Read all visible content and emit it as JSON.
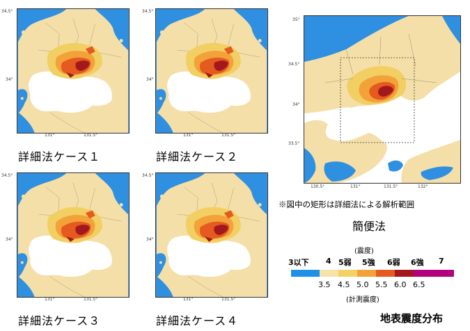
{
  "detail_maps": [
    {
      "caption": "詳細法ケース１",
      "y_ticks": [
        "34.5°",
        "34°"
      ],
      "x_ticks": [
        "131°",
        "131.5°"
      ]
    },
    {
      "caption": "詳細法ケース２",
      "y_ticks": [
        "34.5°",
        "34°"
      ],
      "x_ticks": [
        "131°",
        "131.5°"
      ]
    },
    {
      "caption": "詳細法ケース３",
      "y_ticks": [
        "34.5°",
        "34°"
      ],
      "x_ticks": [
        "131°",
        "131.5°"
      ]
    },
    {
      "caption": "詳細法ケース４",
      "y_ticks": [
        "34.5°",
        "34°"
      ],
      "x_ticks": [
        "131°",
        "131.5°"
      ]
    }
  ],
  "simple_map": {
    "y_ticks": [
      "35°",
      "34.5°",
      "34°",
      "33.5°"
    ],
    "x_ticks": [
      "130.5°",
      "131°",
      "131.5°",
      "132°"
    ],
    "note": "※図中の矩形は詳細法による解析範囲",
    "caption": "簡便法"
  },
  "legend": {
    "intensity_title": "(震度)",
    "intensity_levels": [
      "3以下",
      "4",
      "5弱",
      "5強",
      "6弱",
      "6強",
      "7"
    ],
    "measured_values": [
      "3.5",
      "4.5",
      "5.0",
      "5.5",
      "6.0",
      "6.5"
    ],
    "measured_title": "(計測震度)",
    "colors": [
      "#1e90e8",
      "#f7e3a8",
      "#f2d264",
      "#f3a23a",
      "#e45a1f",
      "#a3181c",
      "#b2007e"
    ]
  },
  "figure_title": "地表震度分布"
}
